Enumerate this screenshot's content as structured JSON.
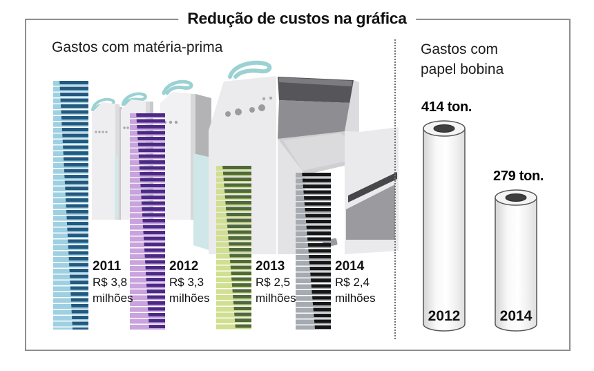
{
  "title": "Redução de custos na gráfica",
  "left_panel": {
    "subtitle": "Gastos com matéria-prima",
    "bars": [
      {
        "year": "2011",
        "value_label": "R$ 3,8",
        "unit_label": "milhões",
        "value_millions": 3.8,
        "color_dark": "#23597f",
        "color_light": "#9ed0e2"
      },
      {
        "year": "2012",
        "value_label": "R$ 3,3",
        "unit_label": "milhões",
        "value_millions": 3.3,
        "color_dark": "#4b2a86",
        "color_light": "#c9a3de"
      },
      {
        "year": "2013",
        "value_label": "R$ 2,5",
        "unit_label": "milhões",
        "value_millions": 2.5,
        "color_dark": "#50693c",
        "color_light": "#d0df90"
      },
      {
        "year": "2014",
        "value_label": "R$ 2,4",
        "unit_label": "milhões",
        "value_millions": 2.4,
        "color_dark": "#161616",
        "color_light": "#a6abb1"
      }
    ]
  },
  "right_panel": {
    "subtitle_line1": "Gastos com",
    "subtitle_line2": "papel bobina",
    "rolls": [
      {
        "year": "2012",
        "tonnage_label": "414 ton.",
        "tons": 414
      },
      {
        "year": "2014",
        "tonnage_label": "279 ton.",
        "tons": 279
      }
    ]
  },
  "chart_data": [
    {
      "type": "bar",
      "title": "Gastos com matéria-prima",
      "categories": [
        "2011",
        "2012",
        "2013",
        "2014"
      ],
      "values": [
        3.8,
        3.3,
        2.5,
        2.4
      ],
      "unit": "R$ milhões",
      "data_labels": [
        "R$ 3,8 milhões",
        "R$ 3,3 milhões",
        "R$ 2,5 milhões",
        "R$ 2,4 milhões"
      ],
      "ylim": [
        0,
        3.8
      ],
      "grid": false,
      "legend": "none"
    },
    {
      "type": "bar",
      "title": "Gastos com papel bobina",
      "categories": [
        "2012",
        "2014"
      ],
      "values": [
        414,
        279
      ],
      "unit": "ton.",
      "data_labels": [
        "414 ton.",
        "279 ton."
      ],
      "ylim": [
        0,
        414
      ],
      "grid": false,
      "legend": "none"
    }
  ]
}
